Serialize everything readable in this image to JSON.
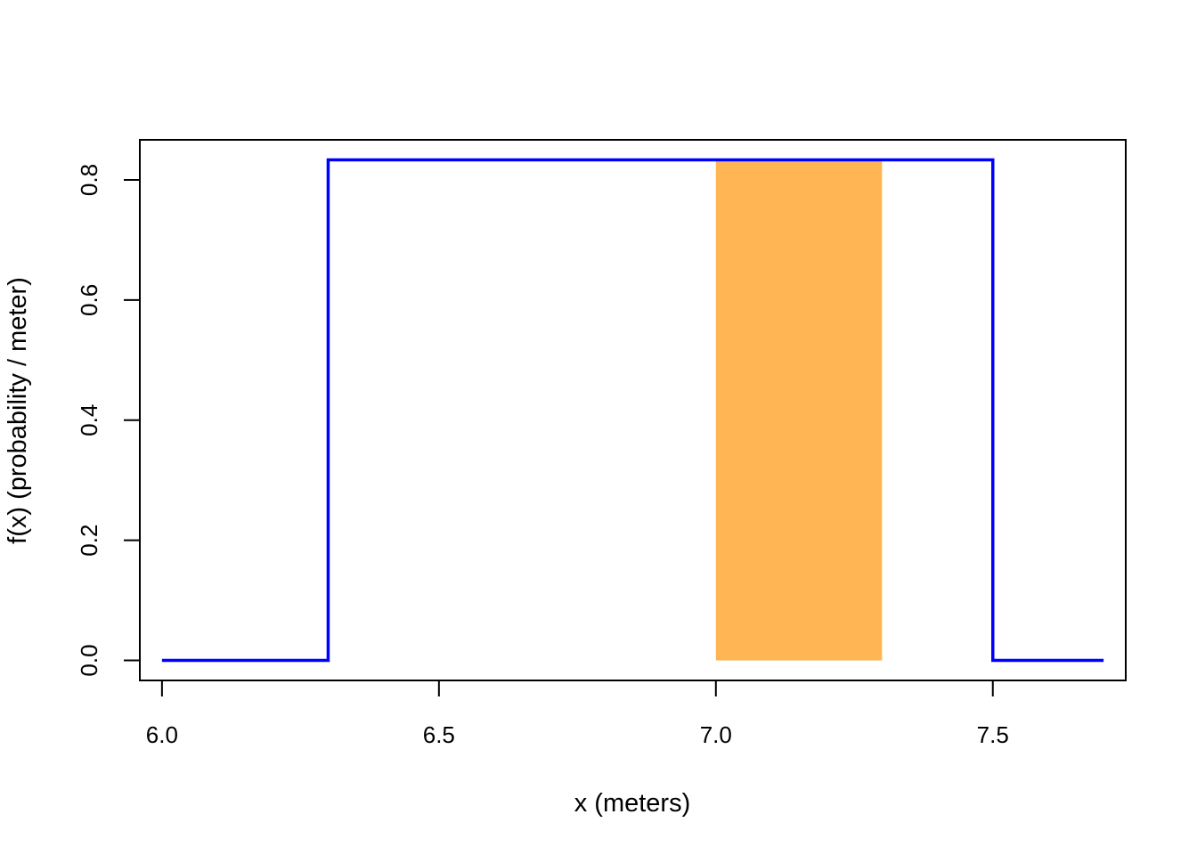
{
  "chart_data": {
    "type": "line",
    "title": "",
    "xlabel": "x (meters)",
    "ylabel": "f(x) (probability / meter)",
    "xlim": [
      5.96,
      7.74
    ],
    "ylim": [
      -0.0333,
      0.8667
    ],
    "xticks": [
      6.0,
      6.5,
      7.0,
      7.5
    ],
    "xtick_labels": [
      "6.0",
      "6.5",
      "7.0",
      "7.5"
    ],
    "yticks": [
      0.0,
      0.2,
      0.4,
      0.6,
      0.8
    ],
    "ytick_labels": [
      "0.0",
      "0.2",
      "0.4",
      "0.6",
      "0.8"
    ],
    "grid": false,
    "series": [
      {
        "color": "#0000ff",
        "points": [
          [
            6.0,
            0.0
          ],
          [
            6.3,
            0.0
          ],
          [
            6.3,
            0.8333
          ],
          [
            7.5,
            0.8333
          ],
          [
            7.5,
            0.0
          ],
          [
            7.7,
            0.0
          ]
        ]
      }
    ],
    "shaded_region": {
      "x_from": 7.0,
      "x_to": 7.3,
      "height": 0.8333,
      "color": "#ffb554"
    }
  }
}
